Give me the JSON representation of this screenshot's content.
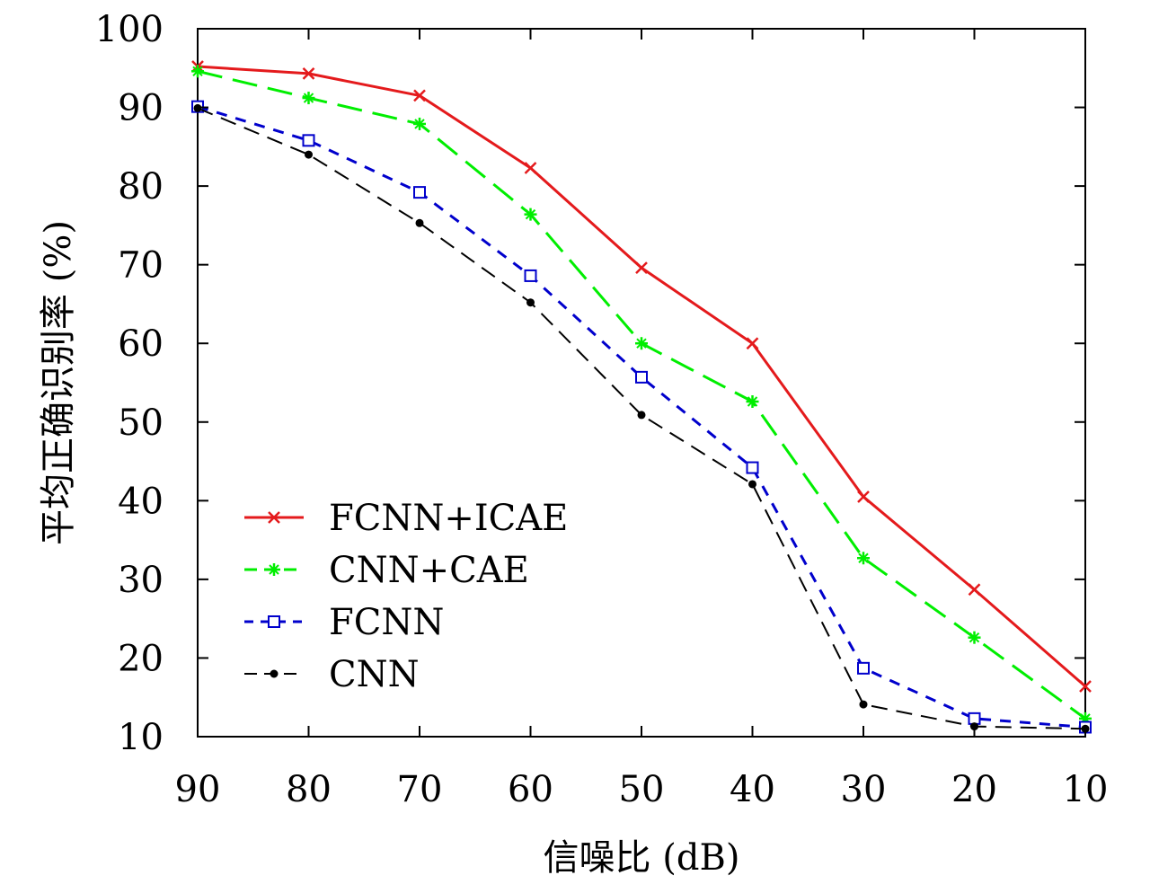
{
  "chart_data": {
    "type": "line",
    "xlabel": "信噪比 (dB)",
    "ylabel": "平均正确识别率 (%)",
    "x": [
      90,
      80,
      70,
      60,
      50,
      40,
      30,
      20,
      10
    ],
    "x_ticks": [
      "90",
      "80",
      "70",
      "60",
      "50",
      "40",
      "30",
      "20",
      "10"
    ],
    "y_ticks": [
      "10",
      "20",
      "30",
      "40",
      "50",
      "60",
      "70",
      "80",
      "90",
      "100"
    ],
    "ylim": [
      10,
      100
    ],
    "xlim": [
      90,
      10
    ],
    "grid": false,
    "legend_position": "bottom-left",
    "series": [
      {
        "name": "FCNN+ICAE",
        "color": "#e41a1c",
        "marker": "x",
        "dash": "solid",
        "values": [
          95.2,
          94.3,
          91.5,
          82.3,
          69.6,
          60.0,
          40.5,
          28.7,
          16.4
        ]
      },
      {
        "name": "CNN+CAE",
        "color": "#00ee00",
        "marker": "star",
        "dash": "long-dash",
        "values": [
          94.6,
          91.2,
          87.9,
          76.4,
          60.0,
          52.6,
          32.7,
          22.6,
          12.3
        ]
      },
      {
        "name": "FCNN",
        "color": "#0000cc",
        "marker": "open-square",
        "dash": "dash",
        "values": [
          90.1,
          85.8,
          79.2,
          68.6,
          55.7,
          44.2,
          18.7,
          12.3,
          11.2
        ]
      },
      {
        "name": "CNN",
        "color": "#000000",
        "marker": "filled-circle",
        "dash": "dash-thin",
        "values": [
          89.9,
          84.0,
          75.3,
          65.2,
          50.9,
          42.1,
          14.1,
          11.3,
          11.0
        ]
      }
    ]
  }
}
